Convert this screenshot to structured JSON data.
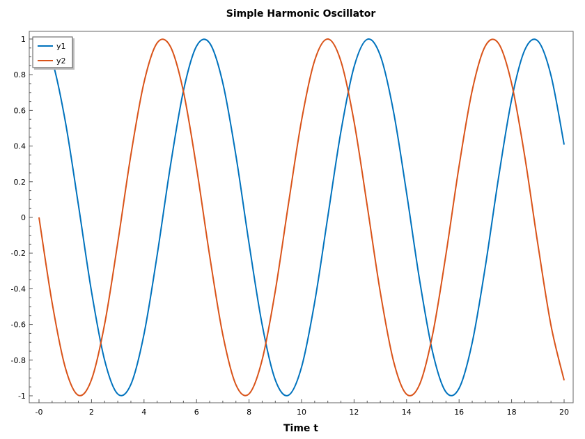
{
  "chart_data": {
    "type": "line",
    "title": "Simple Harmonic Oscillator",
    "xlabel": "Time t",
    "ylabel": "",
    "xlim": [
      0,
      20
    ],
    "ylim": [
      -1,
      1
    ],
    "x_ticks": [
      0,
      2,
      4,
      6,
      8,
      10,
      12,
      14,
      16,
      18,
      20
    ],
    "x_tick_labels": [
      "-0",
      "2",
      "4",
      "6",
      "8",
      "10",
      "12",
      "14",
      "16",
      "18",
      "20"
    ],
    "y_ticks": [
      1,
      0.8,
      0.6,
      0.4,
      0.2,
      0,
      -0.2,
      -0.4,
      -0.6,
      -0.8,
      -1
    ],
    "y_tick_labels": [
      "1",
      "0.8",
      "0.6",
      "0.4",
      "0.2",
      "0",
      "-0.2",
      "-0.4",
      "-0.6",
      "-0.8",
      "-1"
    ],
    "grid": false,
    "legend_position": "top-left",
    "x": [
      0,
      0.5,
      1,
      1.5,
      2,
      2.5,
      3,
      3.5,
      4,
      4.5,
      5,
      5.5,
      6,
      6.5,
      7,
      7.5,
      8,
      8.5,
      9,
      9.5,
      10,
      10.5,
      11,
      11.5,
      12,
      12.5,
      13,
      13.5,
      14,
      14.5,
      15,
      15.5,
      16,
      16.5,
      17,
      17.5,
      18,
      18.5,
      19,
      19.5,
      20
    ],
    "series": [
      {
        "name": "y1",
        "color": "#0072BD",
        "values": [
          1,
          0.878,
          0.54,
          0.071,
          -0.416,
          -0.801,
          -0.99,
          -0.936,
          -0.654,
          -0.211,
          0.284,
          0.709,
          0.96,
          0.977,
          0.754,
          0.347,
          -0.146,
          -0.602,
          -0.911,
          -0.997,
          -0.839,
          -0.475,
          0.004,
          0.482,
          0.844,
          0.998,
          0.907,
          0.595,
          0.137,
          -0.355,
          -0.76,
          -0.979,
          -0.958,
          -0.702,
          -0.275,
          0.22,
          0.66,
          0.938,
          0.989,
          0.796,
          0.408
        ]
      },
      {
        "name": "y2",
        "color": "#D95319",
        "values": [
          0,
          -0.479,
          -0.841,
          -0.997,
          -0.909,
          -0.598,
          -0.141,
          0.351,
          0.757,
          0.978,
          0.959,
          0.706,
          0.279,
          -0.215,
          -0.657,
          -0.938,
          -0.989,
          -0.798,
          -0.412,
          0.075,
          0.544,
          0.88,
          1.0,
          0.875,
          0.537,
          0.066,
          -0.42,
          -0.804,
          -0.991,
          -0.935,
          -0.65,
          -0.207,
          0.288,
          0.712,
          0.961,
          0.976,
          0.751,
          0.343,
          -0.15,
          -0.605,
          -0.913
        ]
      }
    ]
  }
}
